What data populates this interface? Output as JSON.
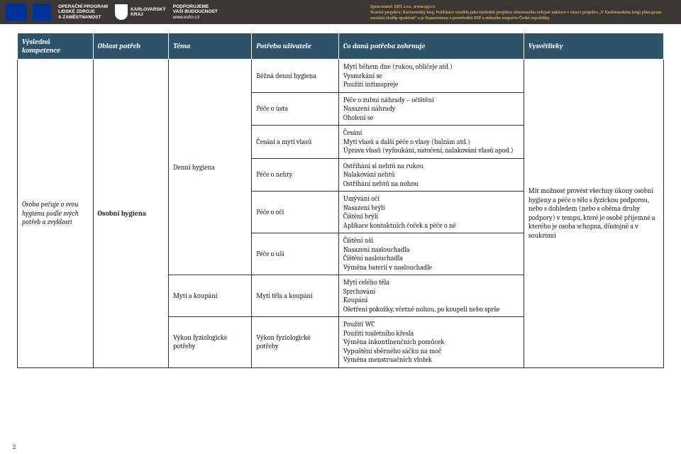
{
  "header": {
    "esf_block1_line1": "OPERAČNÍ PROGRAM",
    "esf_block1_line2": "LIDSKÉ ZDROJE",
    "esf_block1_line3": "A ZAMĚSTNANOST",
    "kv_line1": "KARLOVARSKÝ",
    "kv_line2": "KRAJ",
    "support_line1": "PODPORUJEME",
    "support_line2": "VAŠI BUDOUCNOST",
    "support_line3": "www.esfcr.cz",
    "disclaimer_line1": "Zpracovatel: QQT, s.r.o., www.qqt.cz",
    "disclaimer_line2": "Nositel projektu: Karlovarský kraj. Publikace vznikla jako výsledek projektu věnovaného veřejné zakázce v rámci projektu „V Karlovarském kraji plánujeme sociální služby společně\" a je financována z prostředků ESF a státního rozpočtu České republiky."
  },
  "columns": {
    "c1": "Výsledná kompetence",
    "c2": "Oblast potřeb",
    "c3": "Téma",
    "c4": "Potřeba uživatele",
    "c5": "Co daná potřeba zahrnuje",
    "c6": "Vysvětlivky"
  },
  "span": {
    "kompetence": "Osoba pečuje o svou hygienu podle svých potřeb a zvyklostí",
    "oblast": "Osobní hygiena",
    "tema_denni": "Denní hygiena",
    "tema_myti": "Mytí a koupání",
    "tema_fyz": "Výkon fyziologické potřeby",
    "vysv": "Mít možnost provést všechny úkony osobní hygieny a péče o tělo s fyzickou podporou, nebo s dohledem (nebo s oběma druhy podpory) v tempu, které je osobě příjemné a kterého je osoba schopna, důstojně a v soukromí"
  },
  "rows": [
    {
      "potr": "Běžná denní hygiena",
      "zahr": "Mytí během dne (rukou, obličeje atd.)\nVysmrkání se\nPoužití intimspreje"
    },
    {
      "potr": "Péče o ústa",
      "zahr": "Péče o zubní náhrady – očištění\nNasazení náhrady\nOholení se"
    },
    {
      "potr": "Česání a mytí vlasů",
      "zahr": "Česání\nMytí vlasů a další péče o vlasy (balzám atd.)\nÚprava vlasů (vyfoukání, natočení, nalakování vlasů apod.)"
    },
    {
      "potr": "Péče o nehty",
      "zahr": "Ostříhání si nehtů na rukou\nNalakování nehtů\nOstříhání nehtů na nohou"
    },
    {
      "potr": "Péče o oči",
      "zahr": "Umývání očí\nNasazení brýlí\nČištění brýlí\nAplikace kontaktních čoček a péče o ně"
    },
    {
      "potr": "Péče o uši",
      "zahr": "Čištění uší\nNasazení naslouchadla\nČištění naslouchadla\nVýměna baterií v naslouchadle"
    },
    {
      "potr": "Mytí těla a koupání",
      "zahr": "Mytí celého těla\nSprchování\nKoupání\nOšetření pokožky, včetně nohou, po koupeli nebo sprše"
    },
    {
      "potr": "Výkon fyziologické potřeby",
      "zahr": "Použití WC\nPoužití toaletního křesla\nVýměna inkontinenčních pomůcek\nVypuštění sběrného sáčku na moč\nVýměna menstruačních vložek"
    }
  ],
  "page_number": "2"
}
